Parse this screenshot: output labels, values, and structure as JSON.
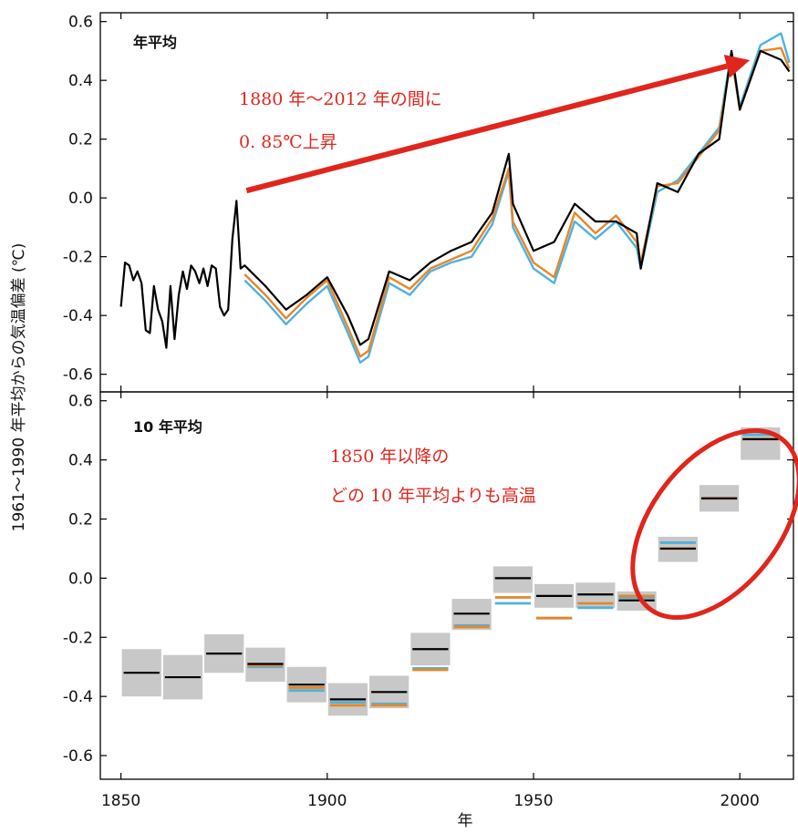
{
  "colors": {
    "black": "#000000",
    "orange": "#E8862A",
    "blue": "#4FB2DD",
    "band": "#c8c8c8",
    "annotation": "#e0261c"
  },
  "chart_data": [
    {
      "type": "line",
      "panel_label": "年平均",
      "xlabel": "年",
      "ylabel": "1961～1990 年平均からの気温偏差 (℃)",
      "xlim": [
        1845,
        2013
      ],
      "ylim": [
        -0.66,
        0.63
      ],
      "xticks": [
        1850,
        1900,
        1950,
        2000
      ],
      "yticks": [
        -0.6,
        -0.4,
        -0.2,
        0.0,
        0.2,
        0.4,
        0.6
      ],
      "ytick_labels": [
        "-0.6",
        "-0.4",
        "-0.2",
        "0.0",
        "0.2",
        "0.4",
        "0.6"
      ],
      "grid": false,
      "series": [
        {
          "color": "black",
          "x": [
            1850,
            1851,
            1852,
            1853,
            1854,
            1855,
            1856,
            1857,
            1858,
            1859,
            1860,
            1861,
            1862,
            1863,
            1864,
            1865,
            1866,
            1867,
            1868,
            1869,
            1870,
            1871,
            1872,
            1873,
            1874,
            1875,
            1876,
            1877,
            1878,
            1879,
            1880,
            1885,
            1890,
            1895,
            1900,
            1905,
            1908,
            1910,
            1915,
            1920,
            1925,
            1930,
            1935,
            1940,
            1944,
            1945,
            1950,
            1955,
            1960,
            1965,
            1970,
            1975,
            1976,
            1980,
            1985,
            1990,
            1995,
            1998,
            2000,
            2005,
            2010,
            2012
          ],
          "y": [
            -0.37,
            -0.22,
            -0.23,
            -0.28,
            -0.25,
            -0.29,
            -0.45,
            -0.46,
            -0.3,
            -0.38,
            -0.42,
            -0.51,
            -0.3,
            -0.48,
            -0.33,
            -0.25,
            -0.31,
            -0.23,
            -0.25,
            -0.29,
            -0.24,
            -0.3,
            -0.23,
            -0.24,
            -0.37,
            -0.4,
            -0.38,
            -0.14,
            -0.01,
            -0.24,
            -0.23,
            -0.3,
            -0.38,
            -0.33,
            -0.27,
            -0.4,
            -0.5,
            -0.48,
            -0.25,
            -0.28,
            -0.22,
            -0.18,
            -0.15,
            -0.05,
            0.15,
            -0.02,
            -0.18,
            -0.15,
            -0.02,
            -0.08,
            -0.08,
            -0.12,
            -0.24,
            0.05,
            0.02,
            0.15,
            0.2,
            0.5,
            0.3,
            0.5,
            0.47,
            0.43
          ]
        },
        {
          "color": "orange",
          "x": [
            1880,
            1885,
            1890,
            1895,
            1900,
            1905,
            1908,
            1910,
            1915,
            1920,
            1925,
            1930,
            1935,
            1940,
            1944,
            1945,
            1950,
            1955,
            1960,
            1965,
            1970,
            1975,
            1976,
            1980,
            1985,
            1990,
            1995,
            1998,
            2000,
            2005,
            2010,
            2012
          ],
          "y": [
            -0.26,
            -0.33,
            -0.41,
            -0.34,
            -0.28,
            -0.44,
            -0.54,
            -0.52,
            -0.27,
            -0.31,
            -0.24,
            -0.21,
            -0.18,
            -0.07,
            0.1,
            -0.08,
            -0.22,
            -0.27,
            -0.05,
            -0.12,
            -0.06,
            -0.15,
            -0.22,
            0.04,
            0.05,
            0.14,
            0.23,
            0.48,
            0.3,
            0.5,
            0.51,
            0.44
          ]
        },
        {
          "color": "blue",
          "x": [
            1880,
            1885,
            1890,
            1895,
            1900,
            1905,
            1908,
            1910,
            1915,
            1920,
            1925,
            1930,
            1935,
            1940,
            1944,
            1945,
            1950,
            1955,
            1960,
            1965,
            1970,
            1975,
            1976,
            1980,
            1985,
            1990,
            1995,
            1998,
            2000,
            2005,
            2010,
            2012
          ],
          "y": [
            -0.28,
            -0.35,
            -0.43,
            -0.36,
            -0.3,
            -0.46,
            -0.56,
            -0.54,
            -0.29,
            -0.33,
            -0.25,
            -0.22,
            -0.2,
            -0.09,
            0.09,
            -0.1,
            -0.24,
            -0.29,
            -0.08,
            -0.14,
            -0.08,
            -0.17,
            -0.24,
            0.02,
            0.06,
            0.15,
            0.24,
            0.5,
            0.31,
            0.52,
            0.56,
            0.46
          ]
        }
      ],
      "annotation": {
        "lines": [
          "1880 年～2012 年の間に",
          "0. 85℃上昇"
        ],
        "arrow": {
          "from": [
            1880,
            0.0
          ],
          "to": [
            2002,
            0.45
          ]
        }
      }
    },
    {
      "type": "bar",
      "panel_label": "10 年平均",
      "xlabel": "年",
      "xlim": [
        1845,
        2013
      ],
      "ylim": [
        -0.68,
        0.63
      ],
      "xticks": [
        1850,
        1900,
        1950,
        2000
      ],
      "xtick_labels": [
        "1850",
        "1900",
        "1950",
        "2000"
      ],
      "yticks": [
        -0.6,
        -0.4,
        -0.2,
        0.0,
        0.2,
        0.4,
        0.6
      ],
      "ytick_labels": [
        "-0.6",
        "-0.4",
        "-0.2",
        "0.0",
        "0.2",
        "0.4",
        "0.6"
      ],
      "grid": false,
      "decades": [
        {
          "start": 1850,
          "end": 1860,
          "black": -0.32,
          "low": -0.4,
          "high": -0.24
        },
        {
          "start": 1860,
          "end": 1870,
          "black": -0.335,
          "low": -0.41,
          "high": -0.26
        },
        {
          "start": 1870,
          "end": 1880,
          "black": -0.255,
          "low": -0.32,
          "high": -0.19
        },
        {
          "start": 1880,
          "end": 1890,
          "black": -0.29,
          "orange": -0.295,
          "blue": -0.3,
          "low": -0.35,
          "high": -0.235
        },
        {
          "start": 1890,
          "end": 1900,
          "black": -0.36,
          "orange": -0.37,
          "blue": -0.38,
          "low": -0.42,
          "high": -0.3
        },
        {
          "start": 1900,
          "end": 1910,
          "black": -0.41,
          "orange": -0.43,
          "blue": -0.42,
          "low": -0.465,
          "high": -0.355
        },
        {
          "start": 1910,
          "end": 1920,
          "black": -0.385,
          "orange": -0.43,
          "blue": -0.425,
          "low": -0.44,
          "high": -0.33
        },
        {
          "start": 1920,
          "end": 1930,
          "black": -0.24,
          "orange": -0.31,
          "blue": -0.305,
          "low": -0.295,
          "high": -0.185
        },
        {
          "start": 1930,
          "end": 1940,
          "black": -0.12,
          "orange": -0.165,
          "blue": -0.16,
          "low": -0.175,
          "high": -0.07
        },
        {
          "start": 1940,
          "end": 1950,
          "black": 0.0,
          "orange": -0.065,
          "blue": -0.085,
          "low": -0.05,
          "high": 0.04
        },
        {
          "start": 1950,
          "end": 1960,
          "black": -0.06,
          "orange": -0.135,
          "blue": -0.135,
          "low": -0.1,
          "high": -0.02
        },
        {
          "start": 1960,
          "end": 1970,
          "black": -0.055,
          "orange": -0.085,
          "blue": -0.1,
          "low": -0.1,
          "high": -0.015
        },
        {
          "start": 1970,
          "end": 1980,
          "black": -0.075,
          "orange": -0.06,
          "blue": -0.065,
          "low": -0.11,
          "high": -0.045
        },
        {
          "start": 1980,
          "end": 1990,
          "black": 0.1,
          "orange": 0.1,
          "blue": 0.12,
          "low": 0.055,
          "high": 0.14
        },
        {
          "start": 1990,
          "end": 2000,
          "black": 0.27,
          "orange": 0.27,
          "blue": 0.27,
          "low": 0.225,
          "high": 0.315
        },
        {
          "start": 2000,
          "end": 2010,
          "black": 0.47,
          "orange": 0.47,
          "blue": 0.485,
          "low": 0.4,
          "high": 0.51
        }
      ],
      "annotation": {
        "lines": [
          "1850 年以降の",
          "どの 10 年平均よりも高温"
        ]
      }
    }
  ]
}
